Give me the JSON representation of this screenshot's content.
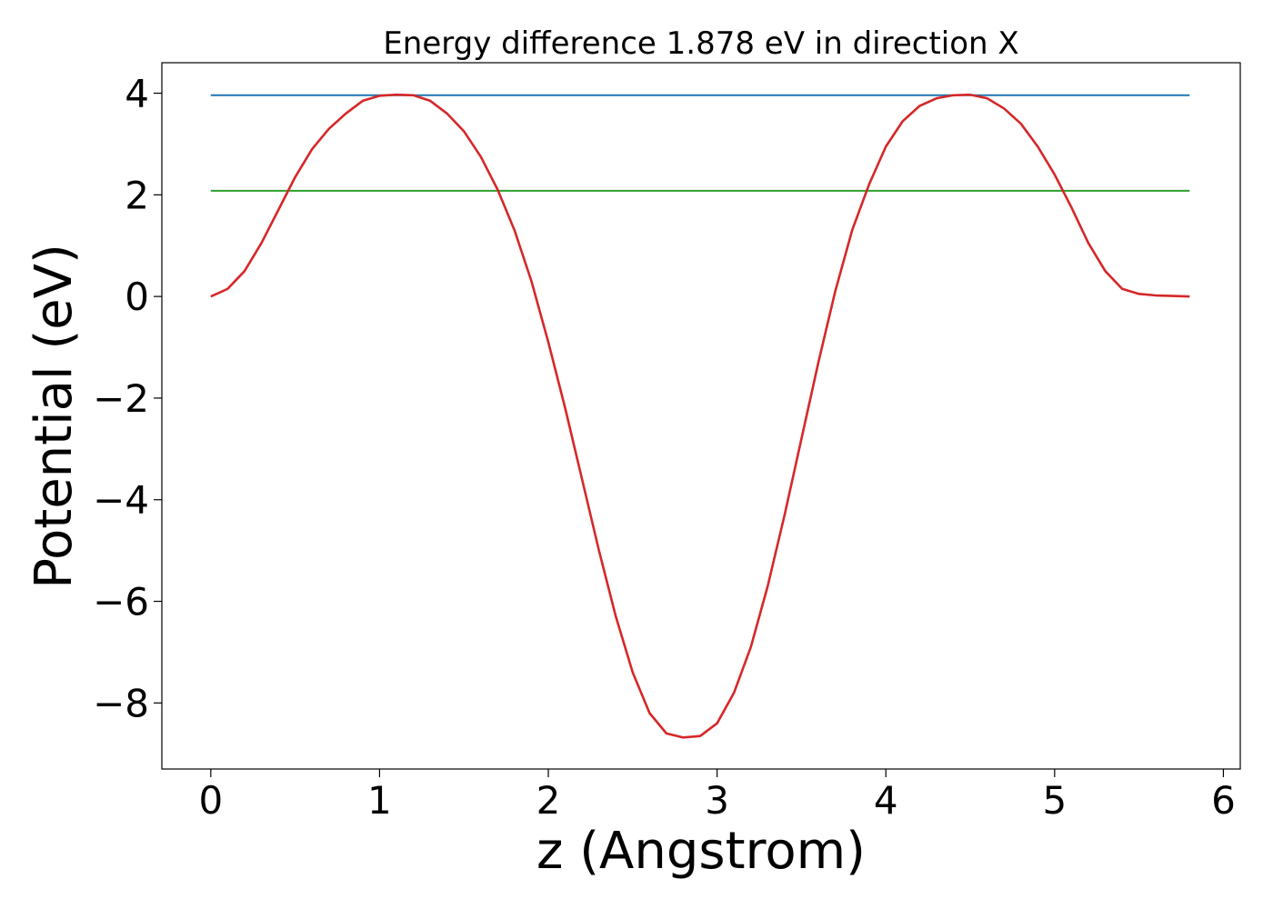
{
  "chart_data": {
    "type": "line",
    "title": "Energy difference 1.878 eV in direction X",
    "xlabel": "z (Angstrom)",
    "ylabel": "Potential (eV)",
    "xlim": [
      -0.29,
      6.1
    ],
    "ylim": [
      -9.3,
      4.6
    ],
    "xticks": [
      0,
      1,
      2,
      3,
      4,
      5,
      6
    ],
    "xtick_labels": [
      "0",
      "1",
      "2",
      "3",
      "4",
      "5",
      "6"
    ],
    "yticks": [
      4,
      2,
      0,
      -2,
      -4,
      -6,
      -8
    ],
    "ytick_labels": [
      "4",
      "2",
      "0",
      "−2",
      "−4",
      "−6",
      "−8"
    ],
    "grid": false,
    "legend": "none",
    "series": [
      {
        "color": "#d62728",
        "x": [
          0.0,
          0.1,
          0.2,
          0.3,
          0.4,
          0.5,
          0.6,
          0.7,
          0.8,
          0.9,
          1.0,
          1.1,
          1.2,
          1.3,
          1.4,
          1.5,
          1.6,
          1.7,
          1.8,
          1.9,
          2.0,
          2.1,
          2.2,
          2.3,
          2.4,
          2.5,
          2.6,
          2.7,
          2.8,
          2.9,
          3.0,
          3.1,
          3.2,
          3.3,
          3.4,
          3.5,
          3.6,
          3.7,
          3.8,
          3.9,
          4.0,
          4.1,
          4.2,
          4.3,
          4.4,
          4.5,
          4.6,
          4.7,
          4.8,
          4.9,
          5.0,
          5.1,
          5.2,
          5.3,
          5.4,
          5.5,
          5.6,
          5.7,
          5.8
        ],
        "y": [
          0.0,
          0.15,
          0.5,
          1.05,
          1.7,
          2.35,
          2.9,
          3.3,
          3.6,
          3.85,
          3.95,
          3.97,
          3.96,
          3.85,
          3.6,
          3.25,
          2.75,
          2.1,
          1.3,
          0.3,
          -0.9,
          -2.2,
          -3.6,
          -5.0,
          -6.3,
          -7.4,
          -8.2,
          -8.6,
          -8.68,
          -8.65,
          -8.4,
          -7.8,
          -6.9,
          -5.7,
          -4.3,
          -2.8,
          -1.3,
          0.1,
          1.3,
          2.2,
          2.95,
          3.45,
          3.75,
          3.9,
          3.96,
          3.97,
          3.9,
          3.7,
          3.4,
          2.95,
          2.4,
          1.75,
          1.05,
          0.5,
          0.15,
          0.05,
          0.02,
          0.01,
          0.0
        ]
      },
      {
        "color": "#1f77b4",
        "x": [
          0.0,
          5.8
        ],
        "y": [
          3.96,
          3.96
        ]
      },
      {
        "color": "#2ca02c",
        "x": [
          0.0,
          5.8
        ],
        "y": [
          2.08,
          2.08
        ]
      }
    ]
  }
}
